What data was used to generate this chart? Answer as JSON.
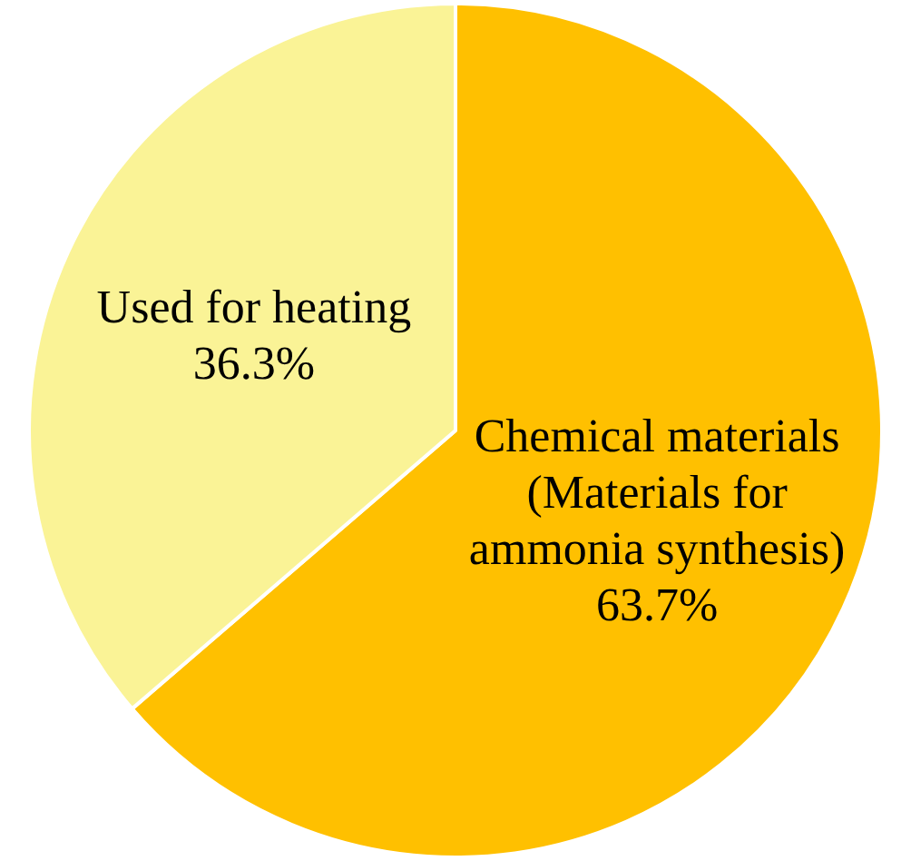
{
  "chart_data": {
    "type": "pie",
    "categories": [
      "Chemical materials (Materials for ammonia synthesis)",
      "Used for heating"
    ],
    "values": [
      63.7,
      36.3
    ],
    "colors": [
      "#ffc000",
      "#faf396"
    ],
    "value_labels": [
      "63.7%",
      "36.3%"
    ],
    "legend": false
  }
}
